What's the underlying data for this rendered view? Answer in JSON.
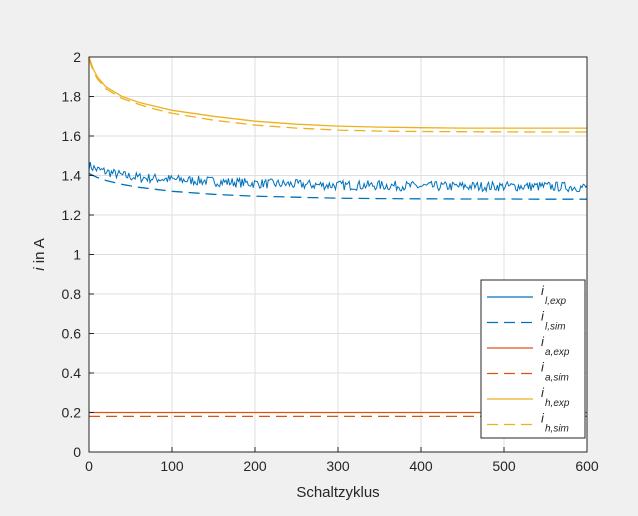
{
  "chart_data": {
    "type": "line",
    "xlabel": "Schaltzyklus",
    "ylabel": {
      "var": "i",
      "rest": " in A"
    },
    "xlim": [
      0,
      600
    ],
    "ylim": [
      0,
      2
    ],
    "xticks": [
      "0",
      "100",
      "200",
      "300",
      "400",
      "500",
      "600"
    ],
    "yticks": [
      "0",
      "0.2",
      "0.4",
      "0.6",
      "0.8",
      "1",
      "1.2",
      "1.4",
      "1.6",
      "1.8",
      "2"
    ],
    "grid": true,
    "legend_position": "lower-right",
    "series": [
      {
        "name": "i_{l,exp}",
        "main": "i",
        "sub": "l,exp",
        "color": "#0072bd",
        "dash": false,
        "x": [
          0,
          10,
          20,
          40,
          60,
          80,
          100,
          150,
          200,
          250,
          300,
          350,
          400,
          450,
          500,
          550,
          600
        ],
        "y": [
          1.45,
          1.43,
          1.42,
          1.4,
          1.39,
          1.385,
          1.38,
          1.37,
          1.36,
          1.355,
          1.35,
          1.35,
          1.345,
          1.345,
          1.345,
          1.345,
          1.34
        ]
      },
      {
        "name": "i_{l,sim}",
        "main": "i",
        "sub": "l,sim",
        "color": "#0072bd",
        "dash": true,
        "x": [
          0,
          10,
          20,
          40,
          60,
          80,
          100,
          150,
          200,
          250,
          300,
          350,
          400,
          450,
          500,
          550,
          600
        ],
        "y": [
          1.41,
          1.39,
          1.375,
          1.355,
          1.34,
          1.33,
          1.32,
          1.305,
          1.295,
          1.29,
          1.285,
          1.283,
          1.282,
          1.281,
          1.281,
          1.28,
          1.28
        ]
      },
      {
        "name": "i_{a,exp}",
        "main": "i",
        "sub": "a,exp",
        "color": "#d95319",
        "dash": false,
        "x": [
          0,
          600
        ],
        "y": [
          0.2,
          0.2
        ]
      },
      {
        "name": "i_{a,sim}",
        "main": "i",
        "sub": "a,sim",
        "color": "#d95319",
        "dash": true,
        "x": [
          0,
          600
        ],
        "y": [
          0.18,
          0.18
        ]
      },
      {
        "name": "i_{h,exp}",
        "main": "i",
        "sub": "h,exp",
        "color": "#edb120",
        "dash": false,
        "x": [
          0,
          5,
          10,
          20,
          40,
          60,
          80,
          100,
          150,
          200,
          250,
          300,
          350,
          400,
          450,
          500,
          550,
          600
        ],
        "y": [
          2.0,
          1.94,
          1.9,
          1.85,
          1.8,
          1.77,
          1.75,
          1.73,
          1.7,
          1.675,
          1.66,
          1.65,
          1.645,
          1.642,
          1.64,
          1.64,
          1.64,
          1.64
        ]
      },
      {
        "name": "i_{h,sim}",
        "main": "i",
        "sub": "h,sim",
        "color": "#edb120",
        "dash": true,
        "x": [
          0,
          5,
          10,
          20,
          40,
          60,
          80,
          100,
          150,
          200,
          250,
          300,
          350,
          400,
          450,
          500,
          550,
          600
        ],
        "y": [
          1.99,
          1.93,
          1.89,
          1.84,
          1.79,
          1.76,
          1.735,
          1.715,
          1.68,
          1.655,
          1.64,
          1.63,
          1.625,
          1.623,
          1.622,
          1.621,
          1.62,
          1.62
        ]
      }
    ]
  }
}
